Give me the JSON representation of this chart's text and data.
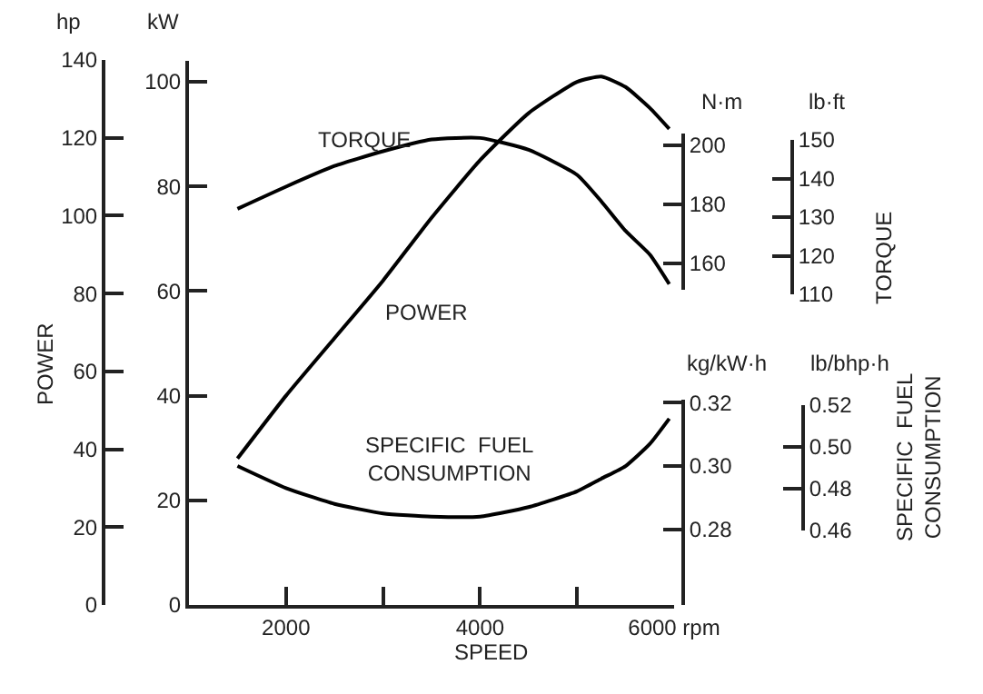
{
  "chart_data": [
    {
      "type": "line",
      "xlabel": "SPEED",
      "ylabel": "kW",
      "y2label": "hp",
      "annotations": [
        "POWER"
      ],
      "x": [
        1500,
        2000,
        2500,
        3000,
        3500,
        4000,
        4500,
        5000,
        5250,
        5500,
        5750,
        5950
      ],
      "series": [
        {
          "name": "POWER",
          "color": "#000000",
          "axis": "y",
          "values": [
            28,
            40,
            51,
            62,
            74,
            85,
            94,
            100,
            101,
            99,
            95,
            91
          ]
        }
      ],
      "xlim": [
        1000,
        6000
      ],
      "xticks": [
        2000,
        {
          "value": 3000,
          "label": null
        },
        4000,
        {
          "value": 5000,
          "label": null
        },
        {
          "value": 6000,
          "label": "6000 rpm"
        }
      ],
      "ylim": [
        0,
        104
      ],
      "yticks": [
        0,
        20,
        40,
        60,
        80,
        100
      ],
      "y2lim": [
        0,
        140
      ],
      "y2ticks": [
        0,
        20,
        40,
        60,
        80,
        100,
        120,
        140
      ],
      "grid": false,
      "legend": false,
      "line_style": "solid"
    },
    {
      "type": "line",
      "ylabel": "N·m",
      "y2label": "lb·ft",
      "annotations": [
        "TORQUE"
      ],
      "x": [
        1500,
        2000,
        2500,
        3000,
        3500,
        4000,
        4500,
        5000,
        5250,
        5500,
        5750,
        5950
      ],
      "series": [
        {
          "name": "TORQUE",
          "color": "#000000",
          "axis": "y",
          "values": [
            178.5,
            186,
            193,
            198,
            202,
            202.5,
            198.5,
            190,
            181,
            171,
            163,
            153
          ]
        }
      ],
      "xlim": [
        1000,
        6000
      ],
      "tick_labels": "y",
      "ylim": [
        151,
        204
      ],
      "yticks": [
        160,
        180,
        200
      ],
      "y2lim": [
        110,
        150
      ],
      "y2ticks": [
        110,
        120,
        130,
        140,
        150
      ],
      "grid": false,
      "legend": false,
      "line_style": "solid"
    },
    {
      "type": "line",
      "ylabel": "kg/kW·h",
      "y2label": "lb/bhp·h",
      "annotations": [
        "SPECIFIC  FUEL\nCONSUMPTION"
      ],
      "x": [
        1500,
        2000,
        2500,
        3000,
        3500,
        4000,
        4500,
        5000,
        5250,
        5500,
        5750,
        5950
      ],
      "series": [
        {
          "name": "SPECIFIC  FUEL\nCONSUMPTION",
          "color": "#000000",
          "axis": "y",
          "values": [
            0.3,
            0.293,
            0.288,
            0.285,
            0.284,
            0.284,
            0.287,
            0.292,
            0.296,
            0.3,
            0.307,
            0.315
          ]
        }
      ],
      "xlim": [
        1000,
        6000
      ],
      "tick_labels": "y",
      "ylim": [
        0.256,
        0.321
      ],
      "yticks": [
        0.28,
        {
          "value": 0.3,
          "label": "0.30"
        },
        0.32
      ],
      "y2lim": [
        0.46,
        0.52
      ],
      "y2ticks": [
        0.46,
        0.48,
        {
          "value": 0.5,
          "label": "0.50"
        },
        0.52
      ],
      "grid": false,
      "legend": false,
      "line_style": "solid"
    }
  ]
}
